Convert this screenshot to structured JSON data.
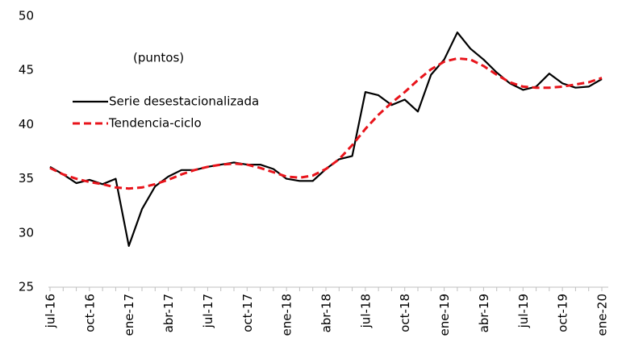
{
  "chart_data": {
    "type": "line",
    "annotation": "(puntos)",
    "categories": [
      "jul-16",
      null,
      null,
      "oct-16",
      null,
      null,
      "ene-17",
      null,
      null,
      "abr-17",
      null,
      null,
      "jul-17",
      null,
      null,
      "oct-17",
      null,
      null,
      "ene-18",
      null,
      null,
      "abr-18",
      null,
      null,
      "jul-18",
      null,
      null,
      "oct-18",
      null,
      null,
      "ene-19",
      null,
      null,
      "abr-19",
      null,
      null,
      "jul-19",
      null,
      null,
      "oct-19",
      null,
      null,
      "ene-20"
    ],
    "series": [
      {
        "name": "Serie desestacionalizada",
        "color": "#000000",
        "dash": false,
        "values": [
          36.1,
          35.4,
          34.6,
          34.9,
          34.5,
          35.0,
          28.8,
          32.2,
          34.3,
          35.2,
          35.8,
          35.8,
          36.1,
          36.3,
          36.5,
          36.3,
          36.3,
          35.9,
          35.0,
          34.8,
          34.8,
          35.9,
          36.8,
          37.1,
          43.0,
          42.7,
          41.8,
          42.3,
          41.2,
          44.6,
          46.0,
          48.5,
          47.0,
          46.0,
          44.8,
          43.8,
          43.2,
          43.5,
          44.7,
          43.8,
          43.4,
          43.5,
          44.2
        ]
      },
      {
        "name": "Tendencia-ciclo",
        "color": "#e8141b",
        "dash": true,
        "values": [
          36.0,
          35.4,
          35.0,
          34.7,
          34.5,
          34.2,
          34.1,
          34.2,
          34.5,
          34.9,
          35.4,
          35.8,
          36.1,
          36.3,
          36.4,
          36.3,
          36.0,
          35.6,
          35.2,
          35.1,
          35.3,
          35.9,
          36.8,
          38.1,
          39.6,
          40.9,
          42.0,
          43.0,
          44.1,
          45.1,
          45.8,
          46.1,
          46.0,
          45.4,
          44.6,
          43.9,
          43.5,
          43.4,
          43.4,
          43.5,
          43.7,
          43.9,
          44.3
        ]
      }
    ],
    "ylim": [
      25,
      50
    ],
    "yticks": [
      25,
      30,
      35,
      40,
      45,
      50
    ],
    "grid": false
  }
}
